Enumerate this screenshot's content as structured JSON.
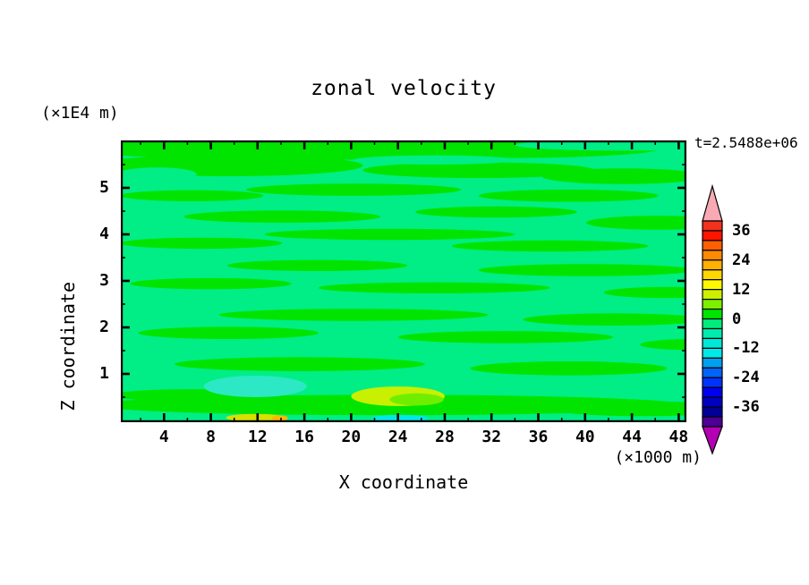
{
  "title": "zonal velocity",
  "time_label": "t=2.5488e+06",
  "axes": {
    "x": {
      "label": "X coordinate",
      "unit": "(×1000 m)",
      "ticks": [
        4,
        8,
        12,
        16,
        20,
        24,
        28,
        32,
        36,
        40,
        44,
        48
      ],
      "minor_ticks": [
        2,
        6,
        10,
        14,
        18,
        22,
        26,
        30,
        34,
        38,
        42,
        46
      ]
    },
    "y": {
      "label": "Z coordinate",
      "unit": "(×1E4 m)",
      "ticks": [
        5,
        4,
        3,
        2,
        1
      ],
      "minor_ticks": [
        0.5,
        1.5,
        2.5,
        3.5,
        4.5,
        5.5
      ]
    }
  },
  "colorbar": {
    "labels": [
      "36",
      "24",
      "12",
      "0",
      "-12",
      "-24",
      "-36"
    ],
    "level_step": 4,
    "segment_colors": [
      "#f0321e",
      "#ff1400",
      "#ff5f00",
      "#ff8a00",
      "#ffb000",
      "#ffd700",
      "#fff800",
      "#ccf000",
      "#7cf000",
      "#00e400",
      "#00ec7c",
      "#00ecb0",
      "#00e8d8",
      "#00e8e8",
      "#009ff0",
      "#0064f8",
      "#0032ff",
      "#0000f0",
      "#0000c0",
      "#000096",
      "#4c0096"
    ],
    "over_color": "#f8aab4",
    "under_color": "#b400b4"
  },
  "chart_data": {
    "type": "heatmap",
    "subtype": "filled_contour",
    "title": "zonal velocity",
    "xlabel": "X coordinate",
    "ylabel": "Z coordinate",
    "x_unit": "(×1000 m)",
    "y_unit": "(×1E4 m)",
    "time": "t=2.5488e+06",
    "xlim": [
      0.3,
      48.7
    ],
    "ylim": [
      0,
      6.02
    ],
    "contour_interval": 4,
    "legend_position": "right-colorbar",
    "grid": false,
    "background_level": "spring",
    "palette": {
      "green": "#00e400",
      "spring": "#00ee85",
      "turquoise": "#2ce8c4",
      "yellow_green": "#c8f000",
      "chartreuse": "#70ee00",
      "gold": "#d8e000",
      "orange": "#ffb800",
      "cyan": "#00e8e8"
    },
    "regions_format": [
      "level_color",
      "x_center",
      "z_center",
      "x_halfwidth",
      "z_halfwidth"
    ],
    "regions": [
      [
        "green",
        15.6,
        5.87,
        19.9,
        0.27
      ],
      [
        "green",
        32.4,
        5.83,
        13.8,
        0.19
      ],
      [
        "green",
        9.5,
        5.48,
        11.5,
        0.23
      ],
      [
        "green",
        30.9,
        5.38,
        9.9,
        0.17
      ],
      [
        "green",
        43.2,
        5.25,
        6.9,
        0.17
      ],
      [
        "green",
        20.2,
        4.96,
        9.2,
        0.13
      ],
      [
        "green",
        6.4,
        4.83,
        6.1,
        0.12
      ],
      [
        "green",
        38.6,
        4.83,
        7.7,
        0.13
      ],
      [
        "green",
        14.1,
        4.38,
        8.4,
        0.13
      ],
      [
        "green",
        32.4,
        4.48,
        6.9,
        0.12
      ],
      [
        "green",
        46.2,
        4.25,
        6.1,
        0.15
      ],
      [
        "green",
        23.3,
        4.0,
        10.7,
        0.12
      ],
      [
        "green",
        7.2,
        3.81,
        6.9,
        0.12
      ],
      [
        "green",
        37.0,
        3.75,
        8.4,
        0.12
      ],
      [
        "green",
        17.1,
        3.33,
        7.7,
        0.12
      ],
      [
        "green",
        40.1,
        3.23,
        9.2,
        0.13
      ],
      [
        "green",
        8.0,
        2.94,
        6.9,
        0.12
      ],
      [
        "green",
        27.1,
        2.85,
        9.9,
        0.12
      ],
      [
        "green",
        47.0,
        2.75,
        5.4,
        0.12
      ],
      [
        "green",
        20.2,
        2.27,
        11.5,
        0.13
      ],
      [
        "green",
        42.4,
        2.17,
        7.7,
        0.13
      ],
      [
        "green",
        9.5,
        1.88,
        7.7,
        0.13
      ],
      [
        "green",
        33.2,
        1.79,
        9.2,
        0.13
      ],
      [
        "green",
        49.3,
        1.63,
        4.6,
        0.12
      ],
      [
        "green",
        15.6,
        1.21,
        10.7,
        0.15
      ],
      [
        "green",
        38.6,
        1.12,
        8.4,
        0.15
      ],
      [
        "green",
        6.4,
        0.54,
        6.9,
        0.13
      ],
      [
        "green",
        23.3,
        0.33,
        25.2,
        0.22
      ],
      [
        "green",
        45.0,
        0.25,
        8.0,
        0.16
      ],
      [
        "spring",
        43.2,
        5.92,
        9.2,
        0.12
      ],
      [
        "spring",
        27.1,
        5.6,
        6.9,
        0.1
      ],
      [
        "spring",
        3.4,
        5.29,
        3.4,
        0.15
      ],
      [
        "turquoise",
        11.8,
        0.73,
        4.4,
        0.23
      ],
      [
        "yellow_green",
        24.0,
        0.52,
        4.0,
        0.21
      ],
      [
        "chartreuse",
        25.6,
        0.45,
        2.3,
        0.13
      ],
      [
        "gold",
        11.8,
        0.06,
        2.5,
        0.08
      ],
      [
        "orange",
        13.9,
        0.05,
        0.7,
        0.06
      ],
      [
        "cyan",
        24.2,
        0.04,
        2.4,
        0.08
      ]
    ]
  }
}
